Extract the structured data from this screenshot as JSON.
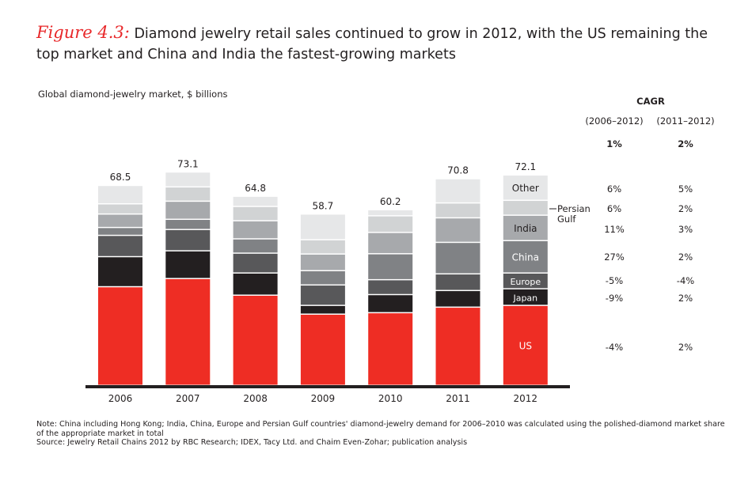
{
  "title": {
    "figure_label": "Figure 4.3:",
    "text": "Diamond jewelry retail sales continued to grow in 2012,  with the US remaining the top market and China and India the fastest-growing markets"
  },
  "subtitle": "Global diamond-jewelry market, $ billions",
  "cagr": {
    "header": "CAGR",
    "columns": [
      "(2006–2012)",
      "(2011–2012)"
    ],
    "total": [
      "1%",
      "2%"
    ],
    "rows": [
      {
        "segment": "Other",
        "values": [
          "6%",
          "5%"
        ]
      },
      {
        "segment": "Persian Gulf",
        "values": [
          "6%",
          "2%"
        ]
      },
      {
        "segment": "India",
        "values": [
          "11%",
          "3%"
        ]
      },
      {
        "segment": "China",
        "values": [
          "27%",
          "2%"
        ]
      },
      {
        "segment": "Europe",
        "values": [
          "-5%",
          "-4%"
        ]
      },
      {
        "segment": "Japan",
        "values": [
          "-9%",
          "2%"
        ]
      },
      {
        "segment": "US",
        "values": [
          "-4%",
          "2%"
        ]
      }
    ]
  },
  "persian_gulf_callout": [
    "Persian",
    "Gulf"
  ],
  "notes": {
    "note": "Note:  China including Hong Kong; India, China, Europe and Persian Gulf countries' diamond-jewelry demand for 2006–2010 was calculated using the polished-diamond market share of the appropriate market in total",
    "source": "Source:  Jewelry Retail Chains 2012 by RBC Research; IDEX, Tacy Ltd. and Chaim Even-Zohar; publication analysis"
  },
  "chart_data": {
    "type": "bar",
    "stacked": true,
    "title": "Global diamond-jewelry market, $ billions",
    "xlabel": "",
    "ylabel": "$ billions",
    "ylim": [
      0,
      75
    ],
    "grid": false,
    "categories": [
      "2006",
      "2007",
      "2008",
      "2009",
      "2010",
      "2011",
      "2012"
    ],
    "totals": [
      "68.5",
      "73.1",
      "64.8",
      "58.7",
      "60.2",
      "70.8",
      "72.1"
    ],
    "series": [
      {
        "name": "US",
        "color": "#ee2d24",
        "values": [
          33.8,
          36.6,
          30.9,
          24.4,
          24.9,
          26.8,
          27.4
        ]
      },
      {
        "name": "Japan",
        "color": "#231f20",
        "values": [
          10.3,
          9.5,
          7.6,
          3.0,
          6.2,
          5.7,
          5.7
        ]
      },
      {
        "name": "Europe",
        "color": "#58585a",
        "values": [
          7.3,
          7.3,
          6.8,
          7.0,
          5.1,
          5.7,
          5.4
        ]
      },
      {
        "name": "China",
        "color": "#808285",
        "values": [
          2.7,
          3.5,
          4.9,
          4.9,
          8.9,
          10.8,
          11.1
        ]
      },
      {
        "name": "India",
        "color": "#a7a9ac",
        "values": [
          4.6,
          6.2,
          6.2,
          5.7,
          7.3,
          8.4,
          8.7
        ]
      },
      {
        "name": "Persian Gulf",
        "color": "#d1d3d4",
        "values": [
          3.5,
          4.9,
          4.9,
          4.9,
          5.7,
          5.1,
          5.1
        ]
      },
      {
        "name": "Other",
        "color": "#e6e7e8",
        "values": [
          6.3,
          5.1,
          3.5,
          8.8,
          2.1,
          8.3,
          8.7
        ]
      }
    ],
    "segment_labels_2012": [
      "US",
      "Japan",
      "Europe",
      "China",
      "India",
      "",
      "Other"
    ]
  }
}
